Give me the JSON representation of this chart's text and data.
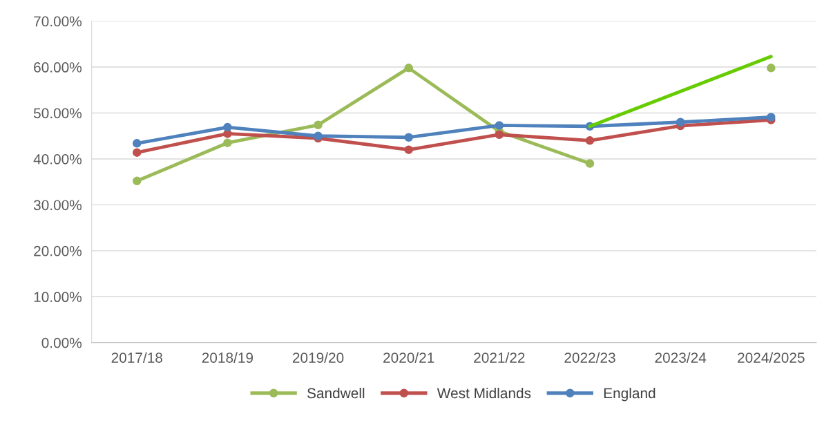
{
  "chart_data": {
    "type": "line",
    "categories": [
      "2017/18",
      "2018/19",
      "2019/20",
      "2020/21",
      "2021/22",
      "2022/23",
      "2023/24",
      "2024/2025"
    ],
    "series": [
      {
        "name": "Sandwell",
        "color": "#9bbb59",
        "values": [
          35.2,
          43.5,
          47.4,
          59.8,
          46.0,
          39.0,
          null,
          59.8
        ]
      },
      {
        "name": "West Midlands",
        "color": "#c0504d",
        "values": [
          41.4,
          45.5,
          44.5,
          42.0,
          45.3,
          44.0,
          47.2,
          48.5
        ]
      },
      {
        "name": "England",
        "color": "#4f81bd",
        "values": [
          43.4,
          46.9,
          45.0,
          44.7,
          47.3,
          47.1,
          48.0,
          49.1
        ]
      },
      {
        "color": "#66cc00",
        "marker": "none",
        "values": [
          null,
          null,
          null,
          null,
          null,
          47.1,
          null,
          62.3
        ]
      }
    ],
    "ylim": [
      0,
      70
    ],
    "yticks": [
      {
        "value": 0,
        "label": "0.00%"
      },
      {
        "value": 10,
        "label": "10.00%"
      },
      {
        "value": 20,
        "label": "20.00%"
      },
      {
        "value": 30,
        "label": "30.00%"
      },
      {
        "value": 40,
        "label": "40.00%"
      },
      {
        "value": 50,
        "label": "50.00%"
      },
      {
        "value": 60,
        "label": "60.00%"
      },
      {
        "value": 70,
        "label": "70.00%"
      }
    ],
    "grid": "y",
    "legend": "bottom",
    "marker": "circle",
    "line_style": "solid"
  }
}
